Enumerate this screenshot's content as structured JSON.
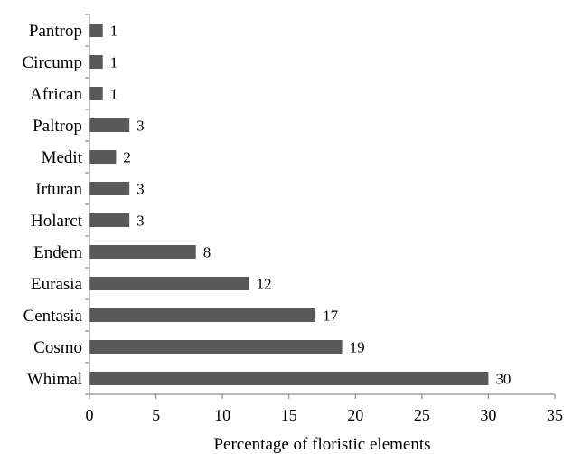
{
  "chart_data": {
    "type": "bar",
    "orientation": "horizontal",
    "categories": [
      "Pantrop",
      "Circump",
      "African",
      "Paltrop",
      "Medit",
      "Irturan",
      "Holarct",
      "Endem",
      "Eurasia",
      "Centasia",
      "Cosmo",
      "Whimal"
    ],
    "values": [
      1,
      1,
      1,
      3,
      2,
      3,
      3,
      8,
      12,
      17,
      19,
      30
    ],
    "xlabel": "Percentage of floristic elements",
    "ylabel": "",
    "xlim": [
      0,
      35
    ],
    "xticks": [
      0,
      5,
      10,
      15,
      20,
      25,
      30,
      35
    ],
    "bar_color": "#595959",
    "grid": false,
    "data_labels": true
  }
}
